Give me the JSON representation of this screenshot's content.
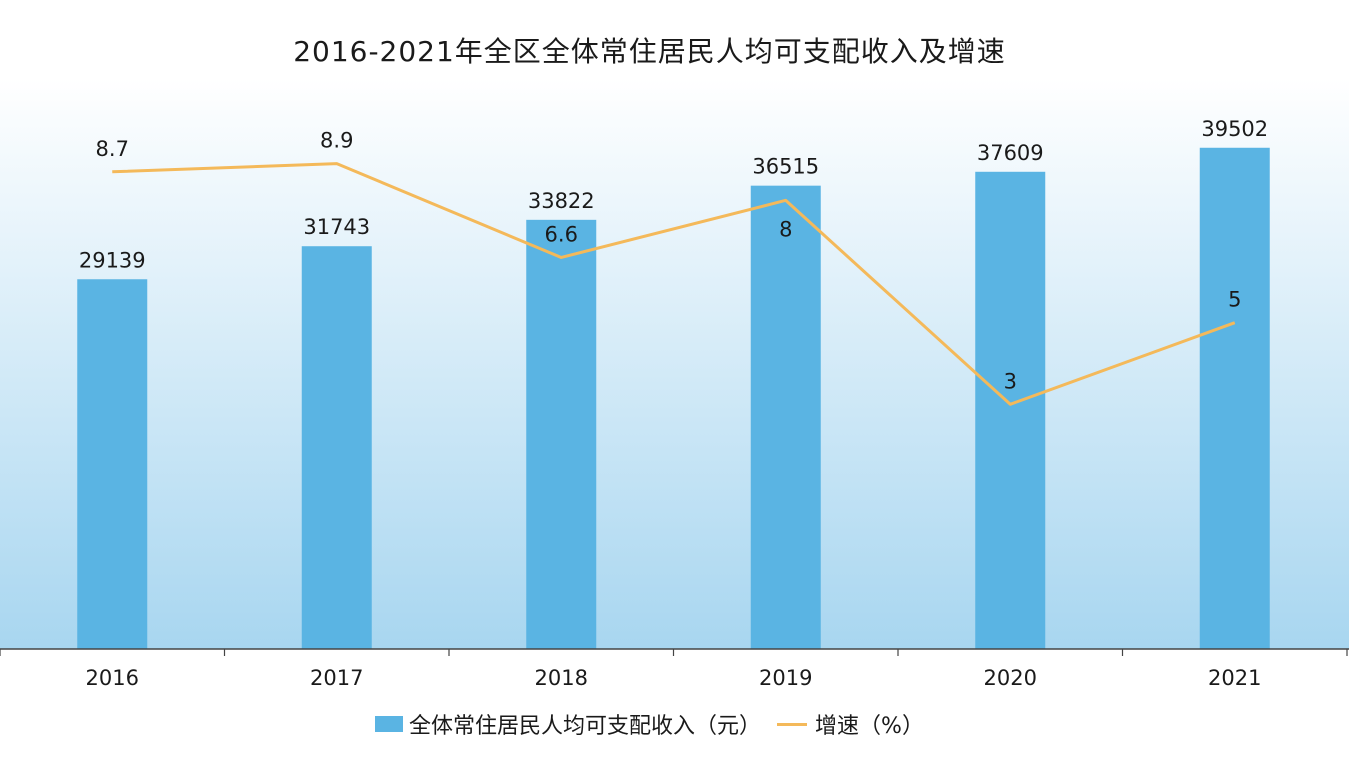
{
  "chart_data": {
    "type": "bar+line",
    "title": "2016-2021年全区全体常住居民人均可支配收入及增速",
    "categories": [
      "2016",
      "2017",
      "2018",
      "2019",
      "2020",
      "2021"
    ],
    "series": [
      {
        "name": "全体常住居民人均可支配收入（元）",
        "type": "bar",
        "axis": "left",
        "values": [
          29139,
          31743,
          33822,
          36515,
          37609,
          39502
        ],
        "data_labels": [
          "29139",
          "31743",
          "33822",
          "36515",
          "37609",
          "39502"
        ]
      },
      {
        "name": "增速（%）",
        "type": "line",
        "axis": "right",
        "values": [
          8.7,
          8.9,
          6.6,
          8,
          3,
          5
        ],
        "data_labels": [
          "8.7",
          "8.9",
          "6.6",
          "8",
          "3",
          "5"
        ]
      }
    ],
    "bar_ylim": [
      0,
      45000
    ],
    "line_ylim": [
      -3,
      11
    ],
    "grid": false,
    "legend_position": "bottom",
    "colors": {
      "bar": "#5ab4e3",
      "line": "#f4b95a",
      "bg_top": "#ffffff",
      "bg_bottom": "#a8d6f0",
      "axis": "#444444"
    }
  }
}
